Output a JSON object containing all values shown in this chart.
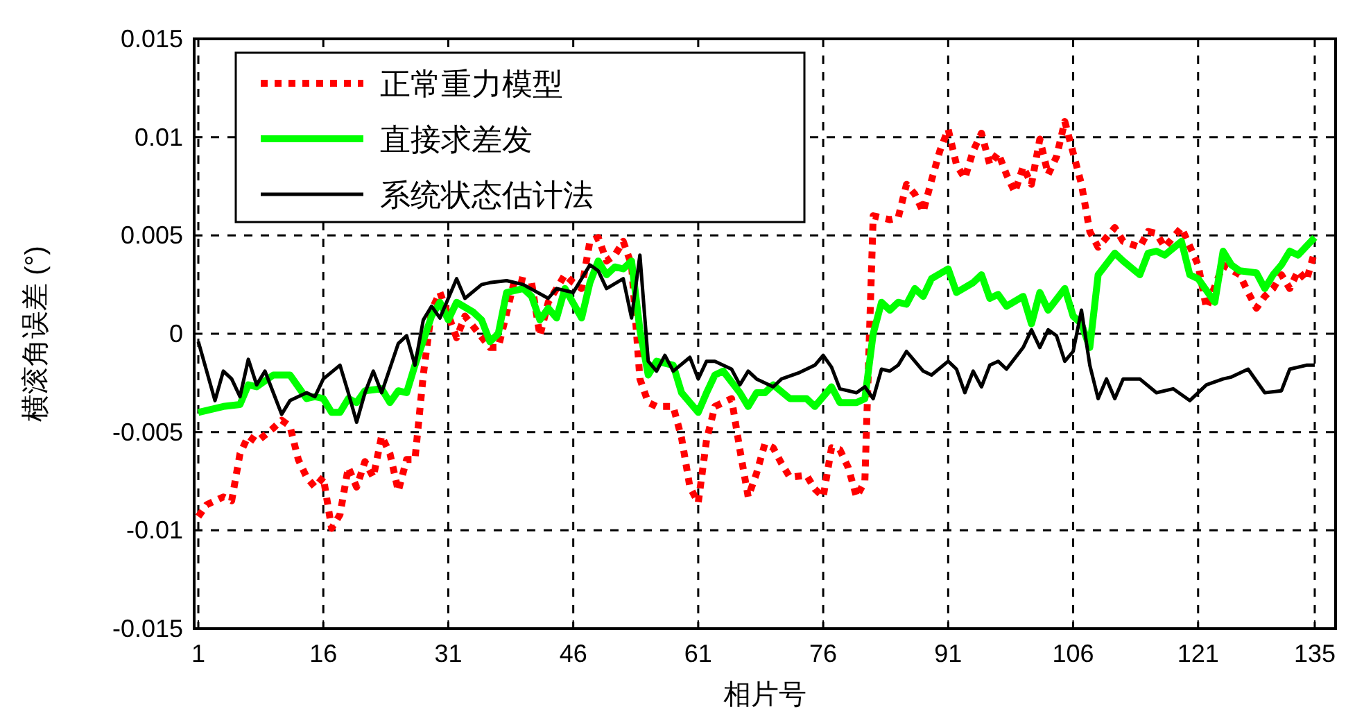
{
  "chart_data": {
    "type": "line",
    "xlabel": "相片号",
    "ylabel": "横滚角误差 (°)",
    "xlim": [
      0.5,
      137.5
    ],
    "ylim": [
      -0.015,
      0.015
    ],
    "xticks": [
      1,
      16,
      31,
      46,
      61,
      76,
      91,
      106,
      121,
      135
    ],
    "yticks": [
      -0.015,
      -0.01,
      -0.005,
      0,
      0.005,
      0.01,
      0.015
    ],
    "grid": true,
    "legend": "top left",
    "series": [
      {
        "name": "正常重力模型",
        "color": "#ff0000",
        "line_style": "dotted",
        "x": [
          1,
          2,
          4,
          5,
          6,
          7,
          8,
          10,
          11,
          12,
          13,
          14,
          15,
          16,
          17,
          18,
          19,
          20,
          21,
          22,
          23,
          24,
          25,
          26,
          27,
          28,
          29,
          30,
          32,
          33,
          36,
          37,
          39,
          41,
          42,
          43,
          45,
          46,
          47,
          48,
          49,
          50,
          51,
          52,
          53,
          54,
          55,
          56,
          58,
          59,
          60,
          61,
          62,
          63,
          65,
          66,
          67,
          68,
          69,
          70,
          71,
          72,
          74,
          75,
          76,
          77,
          78,
          79,
          80,
          81,
          82,
          84,
          85,
          86,
          87,
          88,
          89,
          90,
          91,
          92,
          93,
          94,
          95,
          96,
          97,
          98,
          99,
          100,
          101,
          102,
          103,
          104,
          105,
          106,
          107,
          108,
          109,
          110,
          111,
          112,
          114,
          115,
          116,
          117,
          119,
          121,
          122,
          124,
          126,
          127,
          128,
          129,
          130,
          131,
          132,
          133,
          134,
          135
        ],
        "values": [
          -0.0093,
          -0.0087,
          -0.0083,
          -0.0085,
          -0.0061,
          -0.0052,
          -0.0055,
          -0.0048,
          -0.0044,
          -0.0047,
          -0.0064,
          -0.0073,
          -0.0078,
          -0.0073,
          -0.0099,
          -0.0092,
          -0.0068,
          -0.0078,
          -0.0065,
          -0.0073,
          -0.0052,
          -0.0061,
          -0.008,
          -0.0064,
          -0.0064,
          -0.0021,
          0.0012,
          0.0021,
          -0.0002,
          0.0009,
          -0.0007,
          -0.0007,
          0.0028,
          0.0026,
          -0.0001,
          0.0016,
          0.003,
          0.0026,
          0.0023,
          0.0047,
          0.0049,
          0.0037,
          0.004,
          0.0047,
          0.0035,
          -0.0023,
          -0.0035,
          -0.0037,
          -0.0037,
          -0.0053,
          -0.0078,
          -0.0086,
          -0.0054,
          -0.0037,
          -0.0033,
          -0.0059,
          -0.0083,
          -0.0071,
          -0.0056,
          -0.0058,
          -0.0066,
          -0.0073,
          -0.0072,
          -0.0079,
          -0.0083,
          -0.0058,
          -0.0059,
          -0.0068,
          -0.0083,
          -0.0075,
          0.006,
          0.0058,
          0.0059,
          0.0076,
          0.0071,
          0.0062,
          0.0078,
          0.0093,
          0.0104,
          0.0086,
          0.0079,
          0.0093,
          0.0102,
          0.0086,
          0.0092,
          0.0081,
          0.0072,
          0.0085,
          0.0076,
          0.0099,
          0.0081,
          0.009,
          0.0108,
          0.0092,
          0.0076,
          0.0052,
          0.0044,
          0.0049,
          0.0054,
          0.0047,
          0.0044,
          0.0052,
          0.0051,
          0.0044,
          0.0054,
          0.0035,
          0.0013,
          0.0035,
          0.003,
          0.0021,
          0.0013,
          0.0019,
          0.0023,
          0.003,
          0.0023,
          0.0032,
          0.0027,
          0.0042
        ]
      },
      {
        "name": "直接求差发",
        "color": "#00ff00",
        "line_style": "solid",
        "x": [
          1,
          4,
          6,
          7,
          8,
          10,
          12,
          13,
          14,
          15,
          16,
          17,
          18,
          19,
          20,
          21,
          23,
          24,
          25,
          26,
          27,
          29,
          30,
          31,
          32,
          34,
          35,
          36,
          37,
          38,
          40,
          41,
          42,
          43,
          44,
          45,
          47,
          48,
          49,
          50,
          51,
          52,
          53,
          54,
          55,
          56,
          58,
          59,
          61,
          62,
          63,
          64,
          66,
          67,
          68,
          69,
          70,
          72,
          74,
          75,
          77,
          78,
          80,
          81,
          82,
          83,
          84,
          85,
          86,
          87,
          88,
          89,
          91,
          92,
          94,
          95,
          96,
          97,
          98,
          100,
          101,
          102,
          103,
          105,
          106,
          107,
          108,
          109,
          111,
          112,
          114,
          115,
          116,
          117,
          119,
          120,
          121,
          123,
          124,
          125,
          126,
          128,
          129,
          130,
          131,
          132,
          133,
          135
        ],
        "values": [
          -0.004,
          -0.0037,
          -0.0036,
          -0.0026,
          -0.0027,
          -0.0021,
          -0.0021,
          -0.0027,
          -0.0033,
          -0.0032,
          -0.0033,
          -0.004,
          -0.004,
          -0.0033,
          -0.0035,
          -0.0029,
          -0.0028,
          -0.0035,
          -0.0029,
          -0.003,
          -0.0016,
          0.0009,
          0.0016,
          0.0007,
          0.0016,
          0.0011,
          0.0007,
          -0.0004,
          0,
          0.0021,
          0.0023,
          0.0019,
          0.0007,
          0.0013,
          0.0008,
          0.0023,
          0.0008,
          0.0026,
          0.0037,
          0.003,
          0.0034,
          0.0033,
          0.0037,
          0.0002,
          -0.0021,
          -0.0014,
          -0.0016,
          -0.003,
          -0.004,
          -0.003,
          -0.0021,
          -0.0019,
          -0.003,
          -0.0037,
          -0.003,
          -0.003,
          -0.0026,
          -0.0033,
          -0.0033,
          -0.0037,
          -0.0027,
          -0.0035,
          -0.0035,
          -0.0033,
          0,
          0.0016,
          0.0012,
          0.0016,
          0.0015,
          0.0023,
          0.0019,
          0.0028,
          0.0033,
          0.0021,
          0.0026,
          0.003,
          0.0018,
          0.002,
          0.0014,
          0.0019,
          0.0005,
          0.0021,
          0.0012,
          0.0023,
          0.0009,
          0.0005,
          -0.0007,
          0.003,
          0.0041,
          0.0037,
          0.003,
          0.0041,
          0.0042,
          0.004,
          0.0047,
          0.003,
          0.0028,
          0.0016,
          0.0042,
          0.0035,
          0.0032,
          0.0031,
          0.0023,
          0.003,
          0.0035,
          0.0042,
          0.004,
          0.0049
        ]
      },
      {
        "name": "系统状态估计法",
        "color": "#000000",
        "line_style": "solid",
        "x": [
          1,
          3,
          4,
          5,
          6,
          7,
          8,
          9,
          10,
          11,
          12,
          14,
          15,
          16,
          18,
          19,
          20,
          21,
          22,
          23,
          25,
          26,
          27,
          28,
          29,
          30,
          32,
          33,
          35,
          36,
          38,
          40,
          43,
          44,
          46,
          48,
          49,
          50,
          52,
          53,
          54,
          55,
          56,
          57,
          58,
          60,
          61,
          62,
          63,
          65,
          66,
          67,
          68,
          70,
          71,
          73,
          75,
          76,
          77,
          78,
          80,
          81,
          82,
          83,
          84,
          85,
          86,
          88,
          89,
          91,
          92,
          93,
          94,
          95,
          96,
          97,
          98,
          100,
          101,
          102,
          103,
          104,
          105,
          106,
          107,
          108,
          109,
          110,
          111,
          112,
          114,
          116,
          118,
          120,
          122,
          124,
          125,
          127,
          129,
          131,
          132,
          134,
          135
        ],
        "values": [
          -0.0004,
          -0.0034,
          -0.0019,
          -0.0023,
          -0.0032,
          -0.0013,
          -0.0026,
          -0.0019,
          -0.003,
          -0.0041,
          -0.0034,
          -0.003,
          -0.0032,
          -0.0023,
          -0.0016,
          -0.003,
          -0.0045,
          -0.003,
          -0.0019,
          -0.003,
          -0.0005,
          -0.0001,
          -0.0016,
          0.0007,
          0.0014,
          0.0008,
          0.0028,
          0.0018,
          0.0025,
          0.0026,
          0.0027,
          0.0025,
          0.0018,
          0.0023,
          0.0021,
          0.0035,
          0.0032,
          0.0023,
          0.0028,
          0.0008,
          0.004,
          -0.0014,
          -0.0019,
          -0.0011,
          -0.0019,
          -0.0012,
          -0.0023,
          -0.0014,
          -0.0014,
          -0.0018,
          -0.0026,
          -0.0019,
          -0.0023,
          -0.0027,
          -0.0023,
          -0.002,
          -0.0016,
          -0.0011,
          -0.0017,
          -0.0028,
          -0.003,
          -0.0027,
          -0.0033,
          -0.0018,
          -0.0019,
          -0.0016,
          -0.0009,
          -0.0019,
          -0.0021,
          -0.0014,
          -0.0018,
          -0.003,
          -0.0019,
          -0.0027,
          -0.0016,
          -0.0014,
          -0.0018,
          -0.0007,
          0.0002,
          -0.0007,
          0.0002,
          -0.0001,
          -0.0014,
          -0.0009,
          0.0012,
          -0.0016,
          -0.0033,
          -0.0023,
          -0.0033,
          -0.0023,
          -0.0023,
          -0.003,
          -0.0028,
          -0.0034,
          -0.0026,
          -0.0023,
          -0.0022,
          -0.0018,
          -0.003,
          -0.0029,
          -0.0018,
          -0.0016,
          -0.0016
        ]
      }
    ]
  }
}
